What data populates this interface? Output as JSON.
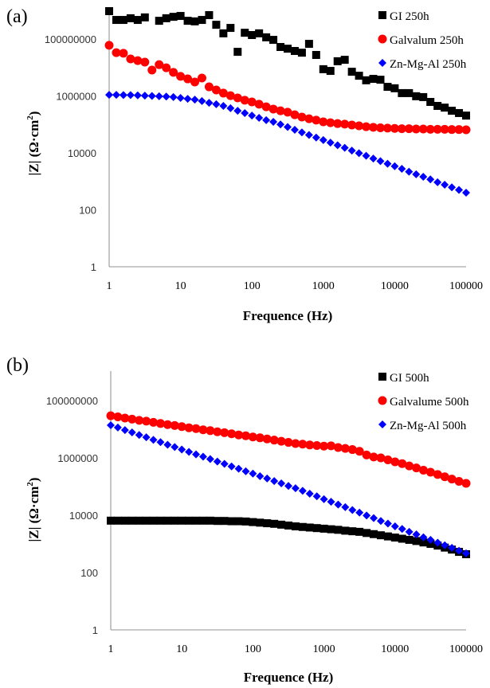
{
  "chart_data": [
    {
      "type": "scatter",
      "panel_label": "(a)",
      "xlabel": "Frequence (Hz)",
      "ylabel_main": "|Z|",
      "ylabel_unit": "(Ω·cm",
      "ylabel_sup": "2",
      "ylabel_close": ")",
      "xscale": "log",
      "yscale": "log",
      "xlim": [
        1,
        100000
      ],
      "ylim": [
        1,
        100000000
      ],
      "xticks": [
        "1",
        "10",
        "100",
        "1000",
        "10000",
        "100000"
      ],
      "yticks": [
        "1",
        "100",
        "10000",
        "1000000",
        "100000000"
      ],
      "grid": false,
      "legend_position": "top-right",
      "x_log10": "i/10 for i = 0..50 (1 Hz to 100000 Hz)",
      "series": [
        {
          "name": "GI 250h",
          "marker": "square",
          "color": "#000000",
          "log10_values": [
            8.98,
            8.67,
            8.67,
            8.73,
            8.67,
            8.76,
            null,
            8.64,
            8.73,
            8.78,
            8.81,
            8.64,
            8.62,
            8.67,
            8.84,
            8.5,
            8.2,
            8.39,
            7.55,
            8.22,
            8.14,
            8.2,
            8.06,
            7.97,
            7.72,
            7.66,
            7.58,
            7.52,
            7.83,
            7.44,
            6.94,
            6.88,
            7.22,
            7.27,
            6.85,
            6.71,
            6.55,
            6.6,
            6.57,
            6.32,
            6.27,
            6.1,
            6.1,
            5.99,
            5.96,
            5.79,
            5.65,
            5.59,
            5.48,
            5.4,
            5.31
          ]
        },
        {
          "name": "Galvalum 250h",
          "marker": "circle",
          "color": "#ff0000",
          "log10_values": [
            7.78,
            7.52,
            7.5,
            7.3,
            7.24,
            7.19,
            6.91,
            7.1,
            6.99,
            6.83,
            6.69,
            6.6,
            6.49,
            6.63,
            6.32,
            6.21,
            6.1,
            6.01,
            5.93,
            5.85,
            5.79,
            5.71,
            5.62,
            5.54,
            5.48,
            5.43,
            5.34,
            5.26,
            5.2,
            5.15,
            5.09,
            5.06,
            5.03,
            5.01,
            4.98,
            4.95,
            4.92,
            4.9,
            4.88,
            4.87,
            4.86,
            4.85,
            4.85,
            4.84,
            4.84,
            4.83,
            4.83,
            4.83,
            4.82,
            4.82,
            4.81
          ]
        },
        {
          "name": "Zn-Mg-Al 250h",
          "marker": "diamond",
          "color": "#0000ff",
          "log10_values": [
            6.04,
            6.04,
            6.03,
            6.03,
            6.02,
            6.01,
            6.0,
            5.99,
            5.98,
            5.96,
            5.93,
            5.9,
            5.87,
            5.82,
            5.76,
            5.71,
            5.65,
            5.57,
            5.48,
            5.4,
            5.31,
            5.23,
            5.15,
            5.09,
            5.0,
            4.91,
            4.81,
            4.72,
            4.63,
            4.54,
            4.45,
            4.36,
            4.27,
            4.18,
            4.08,
            3.99,
            3.9,
            3.8,
            3.71,
            3.62,
            3.53,
            3.44,
            3.34,
            3.25,
            3.16,
            3.07,
            2.97,
            2.88,
            2.79,
            2.7,
            2.6
          ]
        }
      ]
    },
    {
      "type": "scatter",
      "panel_label": "(b)",
      "xlabel": "Frequence (Hz)",
      "ylabel_main": "|Z|",
      "ylabel_unit": "(Ω·cm",
      "ylabel_sup": "2",
      "ylabel_close": ")",
      "xscale": "log",
      "yscale": "log",
      "xlim": [
        1,
        100000
      ],
      "ylim": [
        1,
        100000000
      ],
      "xticks": [
        "1",
        "10",
        "100",
        "1000",
        "10000",
        "100000"
      ],
      "yticks": [
        "1",
        "100",
        "10000",
        "1000000",
        "100000000"
      ],
      "grid": false,
      "legend_position": "top-right",
      "x_log10": "i/10 for i = 0..50 (1 Hz to 100000 Hz)",
      "series": [
        {
          "name": "GI 500h",
          "marker": "square",
          "color": "#000000",
          "log10_values": [
            3.81,
            3.81,
            3.81,
            3.81,
            3.81,
            3.81,
            3.81,
            3.81,
            3.81,
            3.81,
            3.81,
            3.81,
            3.81,
            3.81,
            3.81,
            3.8,
            3.8,
            3.79,
            3.79,
            3.78,
            3.76,
            3.74,
            3.72,
            3.7,
            3.67,
            3.64,
            3.61,
            3.59,
            3.57,
            3.55,
            3.53,
            3.51,
            3.49,
            3.46,
            3.44,
            3.42,
            3.38,
            3.34,
            3.3,
            3.26,
            3.22,
            3.18,
            3.14,
            3.1,
            3.05,
            3.0,
            2.94,
            2.87,
            2.8,
            2.72,
            2.64
          ]
        },
        {
          "name": "Galvalume 500h",
          "marker": "circle",
          "color": "#ff0000",
          "log10_values": [
            7.47,
            7.43,
            7.39,
            7.35,
            7.31,
            7.28,
            7.24,
            7.2,
            7.16,
            7.13,
            7.09,
            7.05,
            7.02,
            6.98,
            6.95,
            6.91,
            6.88,
            6.84,
            6.8,
            6.77,
            6.73,
            6.7,
            6.66,
            6.62,
            6.58,
            6.54,
            6.5,
            6.48,
            6.45,
            6.43,
            6.41,
            6.42,
            6.36,
            6.33,
            6.29,
            6.23,
            6.1,
            6.03,
            6.0,
            5.93,
            5.86,
            5.8,
            5.72,
            5.65,
            5.57,
            5.5,
            5.42,
            5.34,
            5.26,
            5.18,
            5.11
          ]
        },
        {
          "name": "Zn-Mg-Al 500h",
          "marker": "diamond",
          "color": "#0000ff",
          "log10_values": [
            7.14,
            7.06,
            6.97,
            6.89,
            6.8,
            6.72,
            6.63,
            6.55,
            6.46,
            6.38,
            6.29,
            6.21,
            6.12,
            6.04,
            5.96,
            5.87,
            5.79,
            5.7,
            5.62,
            5.53,
            5.45,
            5.36,
            5.28,
            5.19,
            5.11,
            5.02,
            4.94,
            4.85,
            4.75,
            4.66,
            4.56,
            4.47,
            4.37,
            4.28,
            4.18,
            4.09,
            3.99,
            3.9,
            3.8,
            3.71,
            3.61,
            3.52,
            3.42,
            3.33,
            3.23,
            3.14,
            3.04,
            2.95,
            2.86,
            2.76,
            2.67
          ]
        }
      ]
    }
  ]
}
